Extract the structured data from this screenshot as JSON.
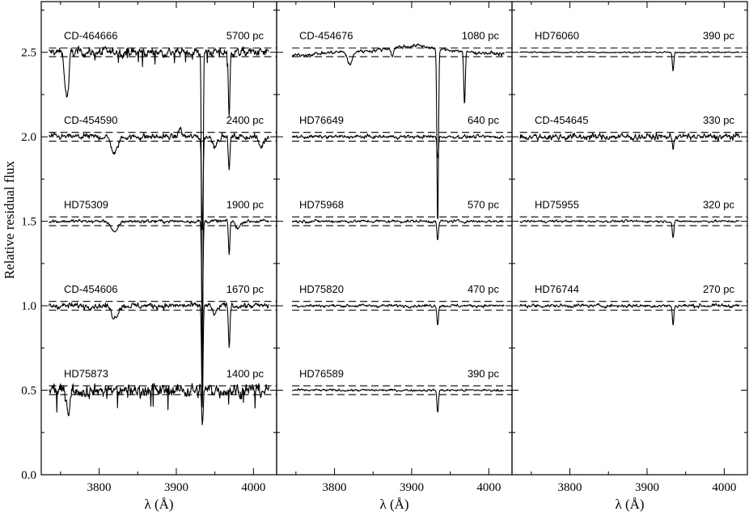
{
  "chart_data": {
    "type": "line",
    "ylabel": "Relative residual flux",
    "xlabel": "λ (Å)",
    "ylim": [
      0.0,
      2.8
    ],
    "yticks": [
      0.0,
      0.5,
      1.0,
      1.5,
      2.0,
      2.5
    ],
    "ytick_labels": [
      "0.0",
      "0.5",
      "1.0",
      "1.5",
      "2.0",
      "2.5"
    ],
    "xlim": [
      3725,
      4030
    ],
    "xticks": [
      3800,
      3900,
      4000
    ],
    "xtick_labels": [
      "3800",
      "3900",
      "4000"
    ],
    "grid": false,
    "legend": "none",
    "line_color": "#000000",
    "x_range": [
      3735,
      4020
    ],
    "band_halfwidth": 0.026,
    "panels": [
      {
        "spectra": [
          {
            "name": "CD-464666",
            "distance": "5700 pc",
            "offset": 2.5,
            "noise": 0.03,
            "band": true,
            "features": [
              {
                "x": 3757,
                "depth": 0.22,
                "width": 2.0
              },
              {
                "x": 3760,
                "depth": 0.15,
                "width": 1.5
              },
              {
                "x": 3933.7,
                "depth": 2.05,
                "width": 0.9
              },
              {
                "x": 3968.5,
                "depth": 0.4,
                "width": 1.0
              }
            ]
          },
          {
            "name": "CD-454590",
            "distance": "2400 pc",
            "offset": 2.0,
            "noise": 0.02,
            "band": true,
            "features": [
              {
                "x": 3820,
                "depth": 0.1,
                "width": 4.0
              },
              {
                "x": 3905,
                "depth": -0.05,
                "width": 2.0
              },
              {
                "x": 3933.7,
                "depth": 0.55,
                "width": 1.0
              },
              {
                "x": 3968.5,
                "depth": 0.2,
                "width": 1.0
              },
              {
                "x": 3950,
                "depth": 0.05,
                "width": 3.0
              },
              {
                "x": 4010,
                "depth": 0.06,
                "width": 3.0
              }
            ]
          },
          {
            "name": "HD75309",
            "distance": "1900 pc",
            "offset": 1.5,
            "noise": 0.012,
            "band": true,
            "features": [
              {
                "x": 3820,
                "depth": 0.07,
                "width": 4.0
              },
              {
                "x": 3933.7,
                "depth": 0.58,
                "width": 0.9
              },
              {
                "x": 3968.5,
                "depth": 0.2,
                "width": 0.9
              },
              {
                "x": 3980,
                "depth": 0.04,
                "width": 3.0
              }
            ]
          },
          {
            "name": "CD-454606",
            "distance": "1670 pc",
            "offset": 1.0,
            "noise": 0.02,
            "band": true,
            "features": [
              {
                "x": 3820,
                "depth": 0.07,
                "width": 4.0
              },
              {
                "x": 3933.7,
                "depth": 0.6,
                "width": 0.9
              },
              {
                "x": 3968.5,
                "depth": 0.24,
                "width": 1.0
              },
              {
                "x": 3950,
                "depth": 0.05,
                "width": 3.0
              }
            ]
          },
          {
            "name": "HD75873",
            "distance": "1400 pc",
            "offset": 0.5,
            "noise": 0.045,
            "band": true,
            "features": [
              {
                "x": 3760,
                "depth": 0.12,
                "width": 2.0
              },
              {
                "x": 3933.7,
                "depth": 0.2,
                "width": 1.0
              }
            ]
          }
        ]
      },
      {
        "spectra": [
          {
            "name": "CD-454676",
            "distance": "1080 pc",
            "offset": 2.5,
            "noise": 0.012,
            "band": true,
            "x_range": [
              3745,
              4020
            ],
            "drift": [
              [
                3745,
                -0.02
              ],
              [
                3800,
                0.0
              ],
              [
                3850,
                0.01
              ],
              [
                3880,
                0.03
              ],
              [
                3910,
                0.04
              ],
              [
                3935,
                0.02
              ],
              [
                3980,
                0.0
              ],
              [
                4020,
                -0.01
              ]
            ],
            "features": [
              {
                "x": 3820,
                "depth": 0.08,
                "width": 3.0
              },
              {
                "x": 3875,
                "depth": 0.05,
                "width": 1.5
              },
              {
                "x": 3933.7,
                "depth": 1.05,
                "width": 1.0
              },
              {
                "x": 3968.5,
                "depth": 0.32,
                "width": 1.0
              }
            ]
          },
          {
            "name": "HD76649",
            "distance": "640 pc",
            "offset": 2.0,
            "noise": 0.012,
            "band": true,
            "x_range": [
              3745,
              4020
            ],
            "features": [
              {
                "x": 3933.7,
                "depth": 0.12,
                "width": 1.0
              }
            ]
          },
          {
            "name": "HD75968",
            "distance": "570 pc",
            "offset": 1.5,
            "noise": 0.01,
            "band": true,
            "x_range": [
              3745,
              4020
            ],
            "features": [
              {
                "x": 3933.7,
                "depth": 0.12,
                "width": 1.0
              }
            ]
          },
          {
            "name": "HD75820",
            "distance": "470 pc",
            "offset": 1.0,
            "noise": 0.01,
            "band": true,
            "x_range": [
              3745,
              4020
            ],
            "features": [
              {
                "x": 3933.7,
                "depth": 0.11,
                "width": 1.0
              }
            ]
          },
          {
            "name": "HD76589",
            "distance": "390 pc",
            "offset": 0.5,
            "noise": 0.008,
            "band": true,
            "x_range": [
              3745,
              4020
            ],
            "features": [
              {
                "x": 3933.7,
                "depth": 0.13,
                "width": 1.0
              }
            ]
          }
        ]
      },
      {
        "spectra": [
          {
            "name": "HD76060",
            "distance": "390 pc",
            "offset": 2.5,
            "noise": 0.005,
            "band": true,
            "features": [
              {
                "x": 3933.7,
                "depth": 0.11,
                "width": 1.0
              }
            ]
          },
          {
            "name": "CD-454645",
            "distance": "330 pc",
            "offset": 2.0,
            "noise": 0.022,
            "band": true,
            "features": [
              {
                "x": 3933.7,
                "depth": 0.06,
                "width": 1.0
              }
            ]
          },
          {
            "name": "HD75955",
            "distance": "320 pc",
            "offset": 1.5,
            "noise": 0.008,
            "band": true,
            "features": [
              {
                "x": 3933.7,
                "depth": 0.1,
                "width": 1.0
              }
            ]
          },
          {
            "name": "HD76744",
            "distance": "270 pc",
            "offset": 1.0,
            "noise": 0.012,
            "band": true,
            "features": [
              {
                "x": 3933.7,
                "depth": 0.11,
                "width": 1.0
              }
            ]
          }
        ]
      }
    ]
  }
}
